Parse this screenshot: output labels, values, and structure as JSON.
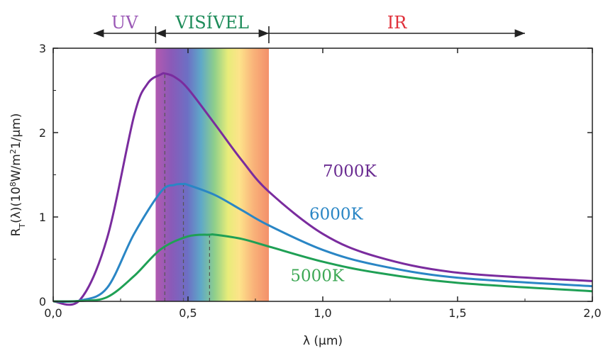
{
  "chart_data": {
    "type": "line",
    "xlabel": "λ (µm)",
    "ylabel_parts": [
      "R",
      "T",
      "(λ)(10",
      "8",
      "W/m",
      "2",
      "1/µm)"
    ],
    "xlim": [
      0,
      2.0
    ],
    "ylim": [
      0,
      3
    ],
    "x_ticks": [
      0,
      0.5,
      1.0,
      1.5,
      2.0
    ],
    "x_tick_labels": [
      "0,0",
      "0,5",
      "1,0",
      "1,5",
      "2,0"
    ],
    "y_ticks": [
      0,
      1,
      2,
      3
    ],
    "y_tick_labels": [
      "0",
      "1",
      "2",
      "3"
    ],
    "grid": false,
    "regions": [
      {
        "label": "UV",
        "from": 0.15,
        "to": 0.38,
        "color": "#9b59b6"
      },
      {
        "label": "VISÍVEL",
        "from": 0.38,
        "to": 0.8,
        "color": "#1e8c5a"
      },
      {
        "label": "IR",
        "from": 0.8,
        "to": 1.75,
        "color": "#e0303a"
      }
    ],
    "visible_band": {
      "from": 0.38,
      "to": 0.8
    },
    "series": [
      {
        "name": "7000K",
        "temperature_K": 7000,
        "color": "#7a2c9e",
        "x": [
          0.0,
          0.1,
          0.2,
          0.3,
          0.35,
          0.4,
          0.414,
          0.45,
          0.5,
          0.6,
          0.7,
          0.8,
          1.0,
          1.2,
          1.5,
          2.0
        ],
        "y": [
          0.0,
          0.02,
          0.75,
          2.2,
          2.58,
          2.69,
          2.7,
          2.66,
          2.52,
          2.1,
          1.67,
          1.3,
          0.8,
          0.53,
          0.34,
          0.24
        ]
      },
      {
        "name": "6000K",
        "temperature_K": 6000,
        "color": "#2a86c5",
        "x": [
          0.0,
          0.1,
          0.2,
          0.3,
          0.4,
          0.45,
          0.483,
          0.5,
          0.6,
          0.7,
          0.8,
          1.0,
          1.2,
          1.5,
          2.0
        ],
        "y": [
          0.0,
          0.01,
          0.16,
          0.8,
          1.3,
          1.38,
          1.39,
          1.38,
          1.26,
          1.08,
          0.9,
          0.61,
          0.43,
          0.28,
          0.18
        ]
      },
      {
        "name": "5000K",
        "temperature_K": 5000,
        "color": "#1fa055",
        "x": [
          0.0,
          0.1,
          0.2,
          0.3,
          0.4,
          0.5,
          0.58,
          0.6,
          0.7,
          0.8,
          1.0,
          1.2,
          1.5,
          2.0
        ],
        "y": [
          0.0,
          0.005,
          0.05,
          0.3,
          0.62,
          0.77,
          0.79,
          0.79,
          0.74,
          0.65,
          0.47,
          0.34,
          0.22,
          0.12
        ]
      }
    ],
    "peaks": [
      {
        "name": "7000K",
        "x": 0.414,
        "y": 2.7
      },
      {
        "name": "6000K",
        "x": 0.483,
        "y": 1.39
      },
      {
        "name": "5000K",
        "x": 0.58,
        "y": 0.79
      }
    ],
    "curve_labels": [
      {
        "text": "7000K",
        "color": "#6a2c91",
        "x": 1.0,
        "y": 1.48
      },
      {
        "text": "6000K",
        "color": "#2a86c5",
        "x": 0.95,
        "y": 0.97
      },
      {
        "text": "5000K",
        "color": "#3da855",
        "x": 0.88,
        "y": 0.24
      }
    ]
  }
}
